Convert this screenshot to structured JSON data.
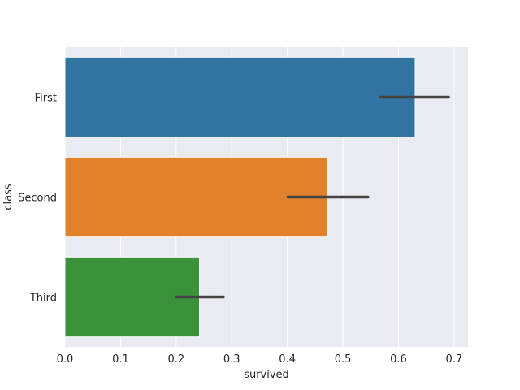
{
  "chart_data": {
    "type": "bar",
    "orientation": "horizontal",
    "categories": [
      "First",
      "Second",
      "Third"
    ],
    "values": [
      0.63,
      0.473,
      0.242
    ],
    "error_bars": [
      [
        0.567,
        0.69
      ],
      [
        0.401,
        0.545
      ],
      [
        0.2,
        0.285
      ]
    ],
    "colors": [
      "#3274a1",
      "#e1812c",
      "#3a923a"
    ],
    "error_color": "#424242",
    "title": "",
    "xlabel": "survived",
    "ylabel": "class",
    "xlim": [
      0,
      0.725
    ],
    "xticks": [
      0.0,
      0.1,
      0.2,
      0.3,
      0.4,
      0.5,
      0.6,
      0.7
    ],
    "xtick_labels": [
      "0.0",
      "0.1",
      "0.2",
      "0.3",
      "0.4",
      "0.5",
      "0.6",
      "0.7"
    ],
    "grid": true,
    "style": {
      "background": "#eaeaf2",
      "grid_color": "#ffffff"
    }
  }
}
